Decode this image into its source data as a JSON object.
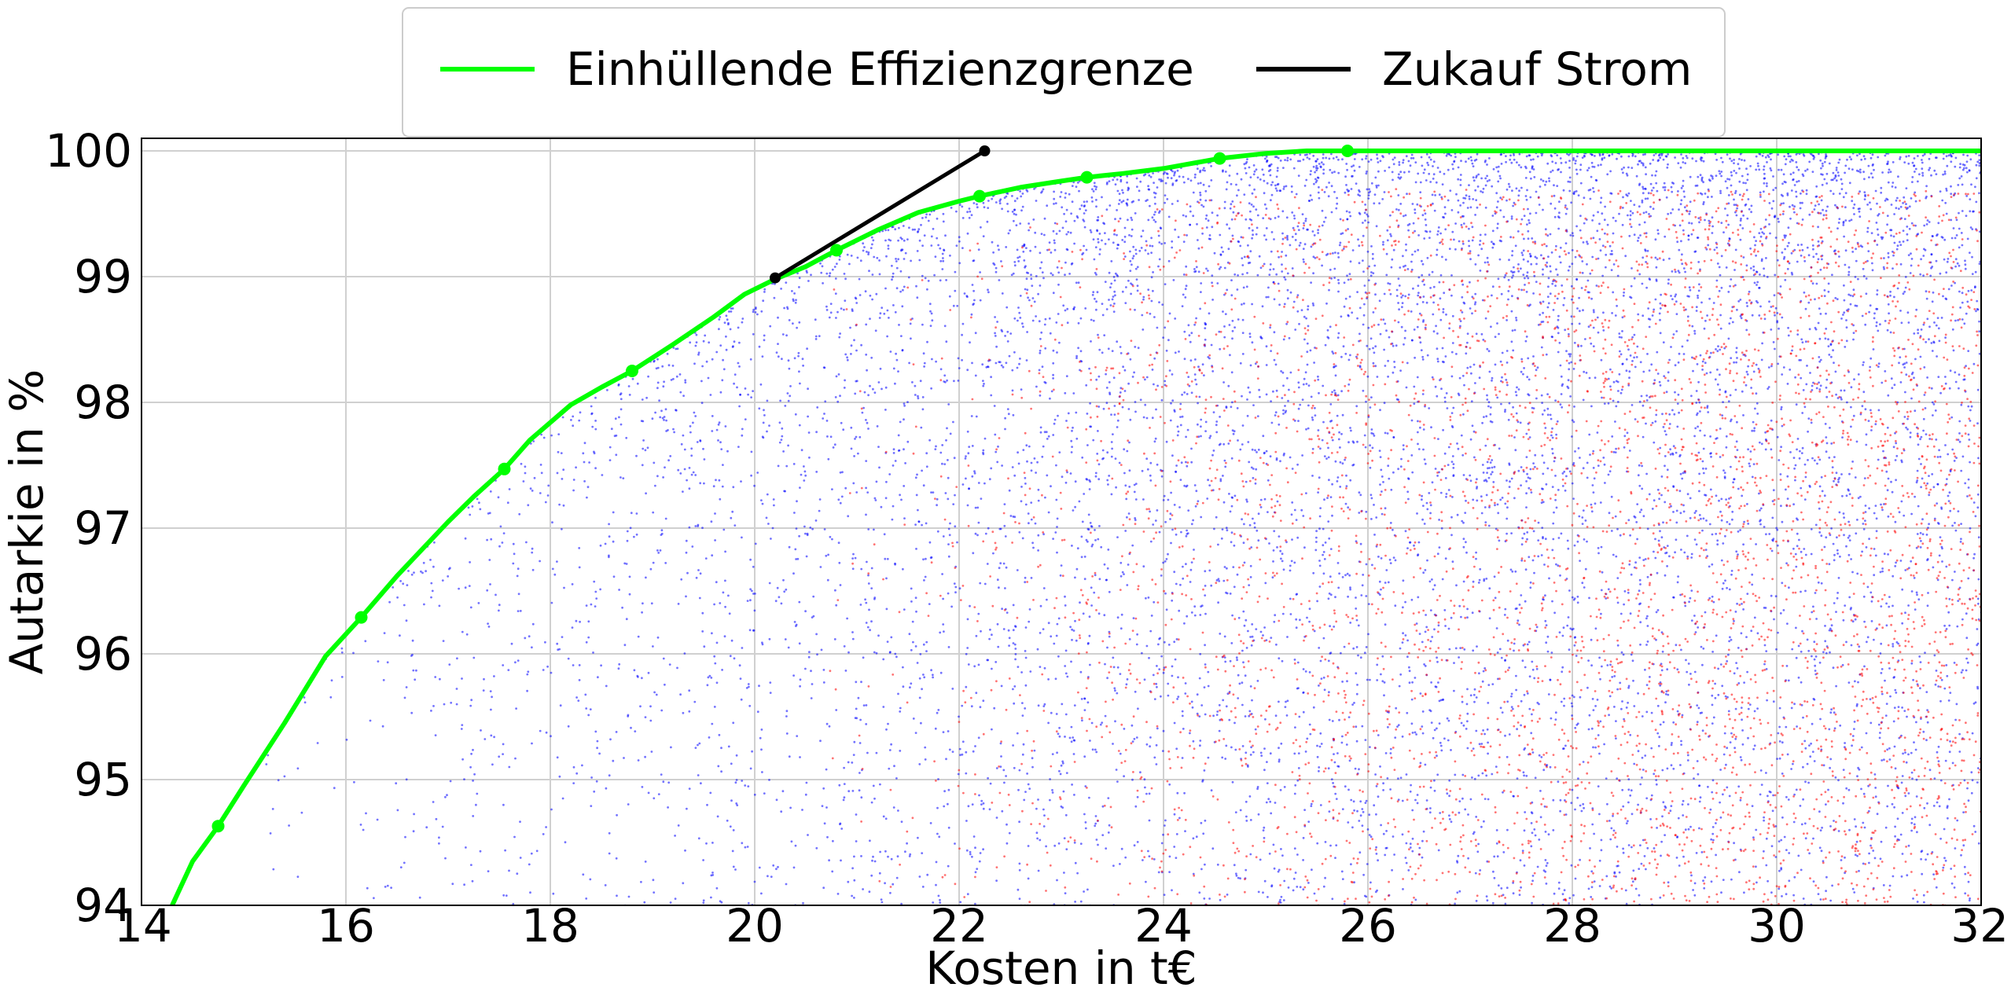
{
  "chart_data": {
    "type": "scatter",
    "xlabel": "Kosten in t€",
    "ylabel": "Autarkie in %",
    "xlim": [
      14,
      32
    ],
    "ylim": [
      94,
      100.1
    ],
    "grid": true,
    "legend_placement": "top-center-outside",
    "x_ticks": [
      14,
      16,
      18,
      20,
      22,
      24,
      26,
      28,
      30,
      32
    ],
    "y_ticks": [
      94,
      95,
      96,
      97,
      98,
      99,
      100
    ],
    "series": [
      {
        "name": "Einhüllende Effizienzgrenze",
        "kind": "line",
        "color": "#00ff00",
        "x": [
          14.3,
          14.5,
          14.75,
          15.0,
          15.4,
          15.8,
          16.15,
          16.5,
          17.0,
          17.25,
          17.55,
          17.8,
          18.2,
          18.5,
          18.8,
          19.2,
          19.6,
          19.9,
          20.2,
          20.5,
          20.8,
          21.2,
          21.6,
          22.0,
          22.2,
          22.6,
          23.0,
          23.25,
          23.6,
          24.0,
          24.55,
          25.0,
          25.4,
          25.8,
          32.0
        ],
        "y": [
          94.0,
          94.35,
          94.63,
          94.95,
          95.45,
          95.98,
          96.29,
          96.62,
          97.05,
          97.25,
          97.47,
          97.7,
          97.98,
          98.12,
          98.25,
          98.46,
          98.68,
          98.86,
          98.98,
          99.08,
          99.21,
          99.37,
          99.51,
          99.6,
          99.64,
          99.71,
          99.76,
          99.79,
          99.82,
          99.86,
          99.94,
          99.98,
          100.0,
          100.0,
          100.0
        ]
      },
      {
        "name": "Zukauf Strom",
        "kind": "line",
        "color": "#000000",
        "x": [
          20.2,
          22.25
        ],
        "y": [
          98.99,
          100.0
        ]
      }
    ],
    "frontier_markers": {
      "color": "#00ff00",
      "x": [
        14.75,
        16.15,
        17.55,
        18.8,
        20.8,
        22.2,
        23.25,
        24.55,
        25.8
      ],
      "y": [
        94.63,
        96.29,
        97.47,
        98.25,
        99.21,
        99.64,
        99.79,
        99.94,
        100.0
      ]
    },
    "purchase_markers": {
      "color": "#000000",
      "x": [
        20.2,
        22.25
      ],
      "y": [
        98.99,
        100.0
      ]
    },
    "scatter_clouds": [
      {
        "color": "#0000ff",
        "count": 9000
      },
      {
        "color": "#ff0000",
        "count": 3800
      }
    ]
  }
}
